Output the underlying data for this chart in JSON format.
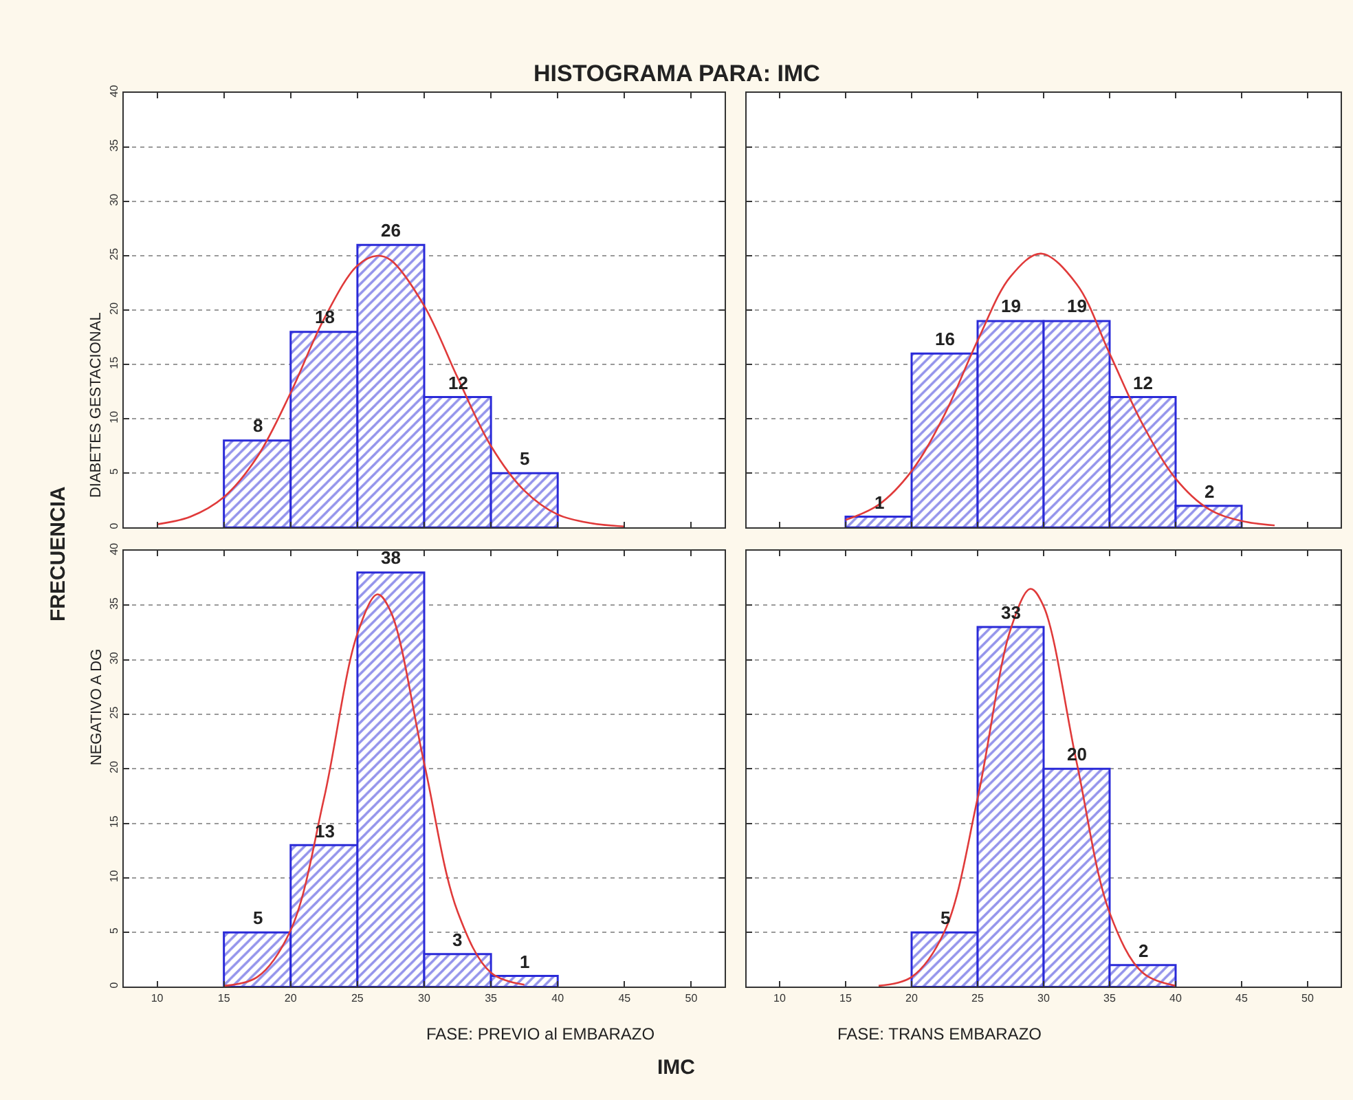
{
  "chart_data": [
    {
      "type": "histogram",
      "title": "HISTOGRAMA PARA: IMC",
      "annotations": [
        "FRECUENCIA",
        "IMC"
      ],
      "ylabel": "DIABETES GESTACIONAL",
      "xlim": [
        7.5,
        52.5
      ],
      "xticks": [
        10,
        15,
        20,
        25,
        30,
        35,
        40,
        45,
        50
      ],
      "ylim": [
        0,
        40
      ],
      "yticks": [
        0,
        5,
        10,
        15,
        20,
        25,
        30,
        35,
        40
      ],
      "grid": "y",
      "tick_labels": "y",
      "series": [
        {
          "color": "#2a2ad8",
          "bins": [
            15,
            20,
            25,
            30,
            35,
            40
          ],
          "values": [
            8,
            18,
            26,
            12,
            5
          ],
          "value_labels": [
            "8",
            "18",
            "26",
            "12",
            "5"
          ]
        },
        {
          "type": "line",
          "color": "#e03a3a",
          "x": [
            10,
            12.5,
            15,
            17.5,
            20,
            22.5,
            25,
            26.5,
            27.5,
            30,
            32.5,
            35,
            37.5,
            40,
            42.5,
            45
          ],
          "values": [
            0.3,
            1,
            2.8,
            6.5,
            12.4,
            19.2,
            24.1,
            25,
            24.6,
            20.4,
            13.8,
            7.5,
            3.4,
            1.2,
            0.4,
            0.1
          ]
        }
      ]
    },
    {
      "type": "histogram",
      "xlim": [
        7.5,
        52.5
      ],
      "xticks": [
        10,
        15,
        20,
        25,
        30,
        35,
        40,
        45,
        50
      ],
      "ylim": [
        0,
        40
      ],
      "yticks": [
        0,
        5,
        10,
        15,
        20,
        25,
        30,
        35,
        40
      ],
      "grid": "y",
      "tick_labels": false,
      "series": [
        {
          "color": "#2a2ad8",
          "bins": [
            15,
            20,
            25,
            30,
            35,
            40,
            45
          ],
          "values": [
            1,
            16,
            19,
            19,
            12,
            2
          ],
          "value_labels": [
            "1",
            "16",
            "19",
            "19",
            "12",
            "2"
          ]
        },
        {
          "type": "line",
          "color": "#e03a3a",
          "x": [
            15,
            17.5,
            20,
            22.5,
            25,
            27.5,
            29.8,
            32.5,
            35,
            37.5,
            40,
            42.5,
            45,
            47.5
          ],
          "values": [
            0.7,
            2.1,
            5.2,
            10.4,
            17.2,
            23.1,
            25.2,
            22.4,
            16,
            9.5,
            4.5,
            1.7,
            0.6,
            0.2
          ]
        }
      ]
    },
    {
      "type": "histogram",
      "ylabel": "NEGATIVO A DG",
      "xlabel": "FASE: PREVIO al EMBARAZO",
      "xlim": [
        7.5,
        52.5
      ],
      "xticks": [
        10,
        15,
        20,
        25,
        30,
        35,
        40,
        45,
        50
      ],
      "ylim": [
        0,
        40
      ],
      "yticks": [
        0,
        5,
        10,
        15,
        20,
        25,
        30,
        35,
        40
      ],
      "grid": "y",
      "series": [
        {
          "color": "#2a2ad8",
          "bins": [
            15,
            20,
            25,
            30,
            35,
            40
          ],
          "values": [
            5,
            13,
            38,
            3,
            1
          ],
          "value_labels": [
            "5",
            "13",
            "38",
            "3",
            "1"
          ]
        },
        {
          "type": "line",
          "color": "#e03a3a",
          "x": [
            15,
            17.5,
            20,
            22.5,
            25,
            26.5,
            27.5,
            30,
            32.5,
            35,
            37.5
          ],
          "values": [
            0.1,
            0.9,
            5.2,
            17.3,
            32.4,
            36,
            34.4,
            20.5,
            6.9,
            1.3,
            0.2
          ]
        }
      ]
    },
    {
      "type": "histogram",
      "xlabel": "FASE: TRANS EMBARAZO",
      "xlim": [
        7.5,
        52.5
      ],
      "xticks": [
        10,
        15,
        20,
        25,
        30,
        35,
        40,
        45,
        50
      ],
      "ylim": [
        0,
        40
      ],
      "yticks": [
        0,
        5,
        10,
        15,
        20,
        25,
        30,
        35,
        40
      ],
      "grid": "y",
      "tick_labels": "x",
      "series": [
        {
          "color": "#2a2ad8",
          "bins": [
            20,
            25,
            30,
            35,
            40
          ],
          "values": [
            5,
            33,
            20,
            2
          ],
          "value_labels": [
            "5",
            "33",
            "20",
            "2"
          ]
        },
        {
          "type": "line",
          "color": "#e03a3a",
          "x": [
            17.5,
            20,
            22.5,
            25,
            27.5,
            29,
            30,
            32.5,
            35,
            37.5,
            40
          ],
          "values": [
            0.1,
            0.9,
            5.1,
            17.3,
            32.8,
            36.5,
            34.9,
            20.6,
            6.8,
            1.3,
            0.1
          ]
        }
      ]
    }
  ]
}
